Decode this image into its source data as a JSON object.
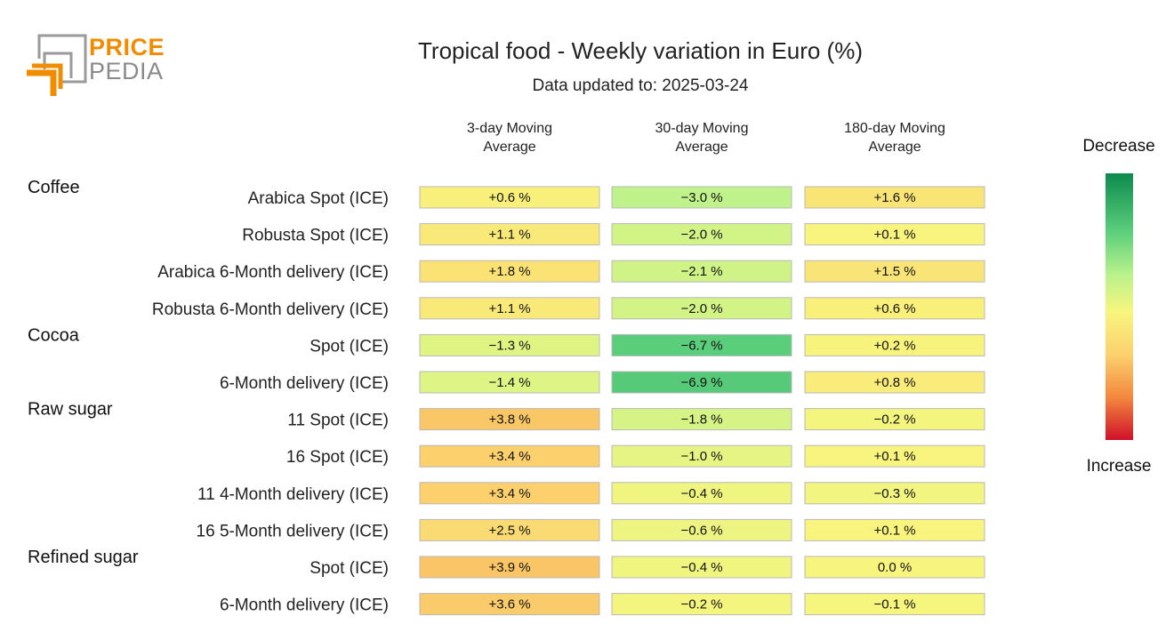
{
  "logo": {
    "line1": "PRICE",
    "line2": "PEDIA"
  },
  "chart_data": {
    "type": "heatmap",
    "title": "Tropical food - Weekly variation in Euro (%)",
    "subtitle": "Data updated to: 2025-03-24",
    "columns": [
      "3-day Moving Average",
      "30-day Moving Average",
      "180-day Moving Average"
    ],
    "columns_display": [
      [
        "3-day Moving",
        "Average"
      ],
      [
        "30-day Moving",
        "Average"
      ],
      [
        "180-day Moving",
        "Average"
      ]
    ],
    "groups": [
      {
        "name": "Coffee",
        "rows": [
          {
            "label": "Arabica Spot (ICE)",
            "values": [
              0.6,
              -3.0,
              1.6
            ],
            "texts": [
              "+0.6 %",
              "−3.0 %",
              "+1.6 %"
            ]
          },
          {
            "label": "Robusta Spot (ICE)",
            "values": [
              1.1,
              -2.0,
              0.1
            ],
            "texts": [
              "+1.1 %",
              "−2.0 %",
              "+0.1 %"
            ]
          },
          {
            "label": "Arabica 6-Month delivery (ICE)",
            "values": [
              1.8,
              -2.1,
              1.5
            ],
            "texts": [
              "+1.8 %",
              "−2.1 %",
              "+1.5 %"
            ]
          },
          {
            "label": "Robusta 6-Month delivery (ICE)",
            "values": [
              1.1,
              -2.0,
              0.6
            ],
            "texts": [
              "+1.1 %",
              "−2.0 %",
              "+0.6 %"
            ]
          }
        ]
      },
      {
        "name": "Cocoa",
        "rows": [
          {
            "label": "Spot (ICE)",
            "values": [
              -1.3,
              -6.7,
              0.2
            ],
            "texts": [
              "−1.3 %",
              "−6.7 %",
              "+0.2 %"
            ]
          },
          {
            "label": "6-Month delivery (ICE)",
            "values": [
              -1.4,
              -6.9,
              0.8
            ],
            "texts": [
              "−1.4 %",
              "−6.9 %",
              "+0.8 %"
            ]
          }
        ]
      },
      {
        "name": "Raw sugar",
        "rows": [
          {
            "label": "11 Spot (ICE)",
            "values": [
              3.8,
              -1.8,
              -0.2
            ],
            "texts": [
              "+3.8 %",
              "−1.8 %",
              "−0.2 %"
            ]
          },
          {
            "label": "16 Spot (ICE)",
            "values": [
              3.4,
              -1.0,
              0.1
            ],
            "texts": [
              "+3.4 %",
              "−1.0 %",
              "+0.1 %"
            ]
          },
          {
            "label": "11 4-Month delivery (ICE)",
            "values": [
              3.4,
              -0.4,
              -0.3
            ],
            "texts": [
              "+3.4 %",
              "−0.4 %",
              "−0.3 %"
            ]
          },
          {
            "label": "16 5-Month delivery (ICE)",
            "values": [
              2.5,
              -0.6,
              0.1
            ],
            "texts": [
              "+2.5 %",
              "−0.6 %",
              "+0.1 %"
            ]
          }
        ]
      },
      {
        "name": "Refined sugar",
        "rows": [
          {
            "label": "Spot (ICE)",
            "values": [
              3.9,
              -0.4,
              0.0
            ],
            "texts": [
              "+3.9 %",
              "−0.4 %",
              "0.0 %"
            ]
          },
          {
            "label": "6-Month delivery (ICE)",
            "values": [
              3.6,
              -0.2,
              -0.1
            ],
            "texts": [
              "+3.6 %",
              "−0.2 %",
              "−0.1 %"
            ]
          }
        ]
      }
    ],
    "colorscale": {
      "min": -10,
      "max": 10,
      "stops": [
        "#0d8a4f",
        "#5ccf7c",
        "#b9f28c",
        "#f8f57e",
        "#fbd16e",
        "#f3883e",
        "#d0102a"
      ]
    },
    "legend": {
      "top_label": "Decrease",
      "bottom_label": "Increase",
      "placement": "right"
    }
  }
}
